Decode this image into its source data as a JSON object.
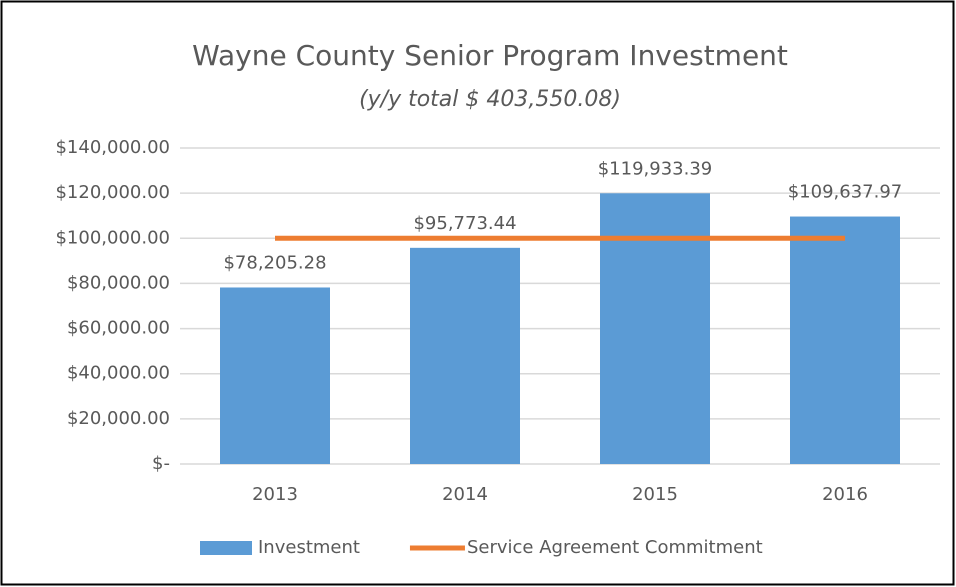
{
  "chart_data": {
    "type": "bar",
    "title": "Wayne County Senior Program Investment",
    "subtitle": "(y/y total $ 403,550.08)",
    "categories": [
      "2013",
      "2014",
      "2015",
      "2016"
    ],
    "series": [
      {
        "name": "Investment",
        "type": "bar",
        "color": "#5b9bd5",
        "values": [
          78205.28,
          95773.44,
          119933.39,
          109637.97
        ],
        "value_labels": [
          "$78,205.28",
          "$95,773.44",
          "$119,933.39",
          "$109,637.97"
        ]
      },
      {
        "name": "Service Agreement Commitment",
        "type": "line",
        "color": "#ed7d31",
        "values": [
          100000,
          100000,
          100000,
          100000
        ]
      }
    ],
    "ylim": [
      0,
      140000
    ],
    "yticks": [
      {
        "value": 0,
        "label": "$-"
      },
      {
        "value": 20000,
        "label": "$20,000.00"
      },
      {
        "value": 40000,
        "label": "$40,000.00"
      },
      {
        "value": 60000,
        "label": "$60,000.00"
      },
      {
        "value": 80000,
        "label": "$80,000.00"
      },
      {
        "value": 100000,
        "label": "$100,000.00"
      },
      {
        "value": 120000,
        "label": "$120,000.00"
      },
      {
        "value": 140000,
        "label": "$140,000.00"
      }
    ],
    "grid": true,
    "legend": "bottom"
  }
}
